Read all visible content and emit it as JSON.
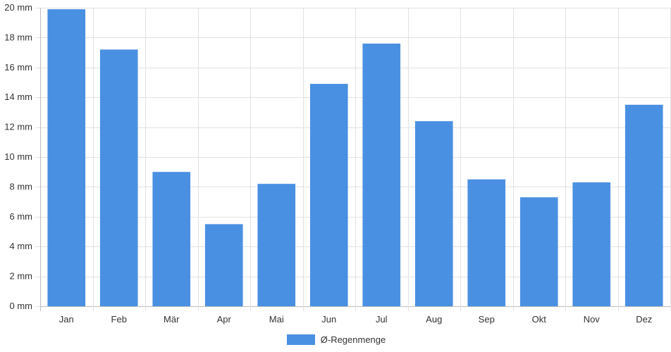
{
  "colors": {
    "bar": "#4a90e2",
    "grid": "#e2e2e2",
    "axis": "#bdbdbd",
    "text": "#333333"
  },
  "chart_data": {
    "type": "bar",
    "title": "",
    "xlabel": "",
    "ylabel": "",
    "categories": [
      "Jan",
      "Feb",
      "Mär",
      "Apr",
      "Mai",
      "Jun",
      "Jul",
      "Aug",
      "Sep",
      "Okt",
      "Nov",
      "Dez"
    ],
    "series": [
      {
        "name": "Ø-Regenmenge",
        "values": [
          19.9,
          17.2,
          9.0,
          5.5,
          8.2,
          14.9,
          17.6,
          12.4,
          8.5,
          7.3,
          8.3,
          13.5
        ]
      }
    ],
    "ylim": [
      0,
      20
    ],
    "yticks": [
      0,
      2,
      4,
      6,
      8,
      10,
      12,
      14,
      16,
      18,
      20
    ],
    "y_unit": "mm",
    "ytick_labels": [
      "0 mm",
      "2 mm",
      "4 mm",
      "6 mm",
      "8 mm",
      "10 mm",
      "12 mm",
      "14 mm",
      "16 mm",
      "18 mm",
      "20 mm"
    ],
    "grid": true,
    "legend_position": "bottom"
  }
}
